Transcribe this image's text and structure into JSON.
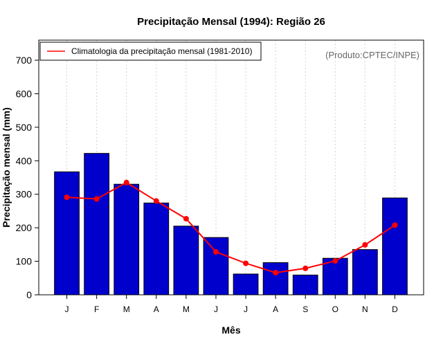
{
  "chart_data": {
    "type": "bar",
    "title": "Precipitação Mensal (1994): Região 26",
    "xlabel": "Mês",
    "ylabel": "Precipitação mensal (mm)",
    "categories": [
      "J",
      "F",
      "M",
      "A",
      "M",
      "J",
      "J",
      "A",
      "S",
      "O",
      "N",
      "D"
    ],
    "ylim": [
      0,
      760
    ],
    "yticks": [
      0,
      100,
      200,
      300,
      400,
      500,
      600,
      700
    ],
    "grid": true,
    "series": [
      {
        "name": "Precipitação mensal (1994)",
        "type": "bar",
        "color": "#0000cd",
        "values": [
          367,
          422,
          330,
          274,
          205,
          171,
          62,
          96,
          59,
          109,
          135,
          289
        ]
      },
      {
        "name": "Climatologia da precipitação mensal (1981-2010)",
        "type": "line",
        "color": "#ff0000",
        "values": [
          291,
          286,
          335,
          280,
          227,
          128,
          94,
          66,
          79,
          101,
          149,
          208
        ]
      }
    ],
    "legend": {
      "position": "top-left",
      "entries": [
        "Climatologia da precipitação mensal (1981-2010)"
      ]
    },
    "annotation": "(Produto:CPTEC/INPE)"
  }
}
